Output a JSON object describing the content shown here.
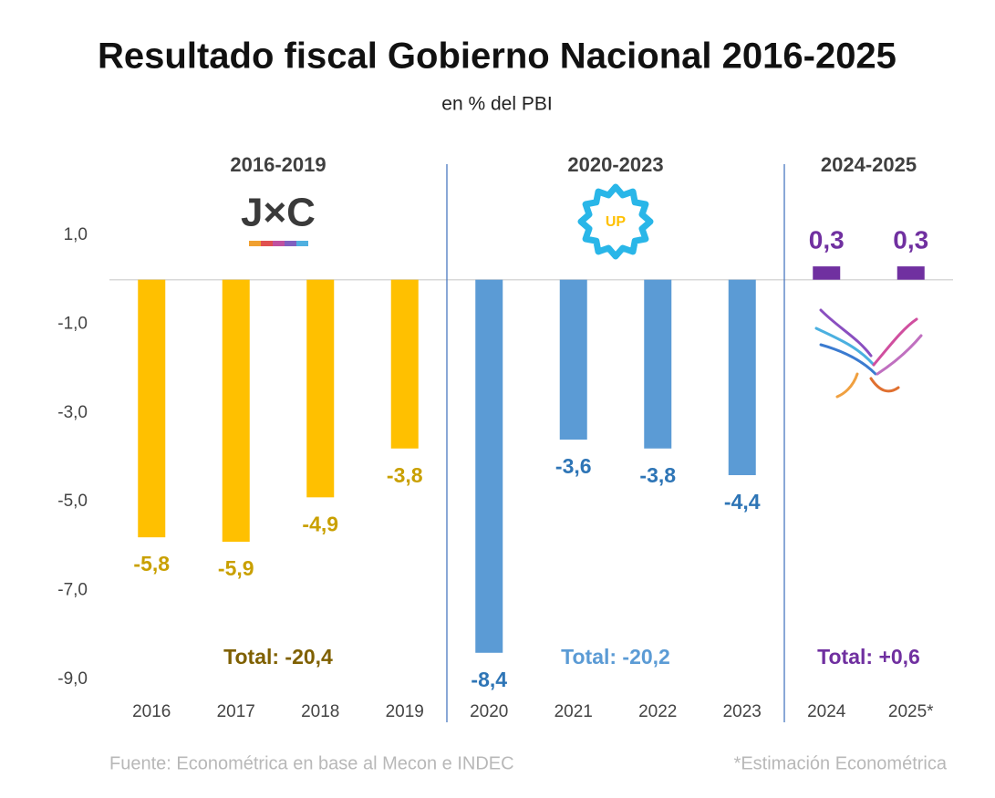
{
  "chart_data": {
    "type": "bar",
    "title": "Resultado fiscal Gobierno Nacional 2016-2025",
    "subtitle": "en % del PBI",
    "categories": [
      "2016",
      "2017",
      "2018",
      "2019",
      "2020",
      "2021",
      "2022",
      "2023",
      "2024",
      "2025*"
    ],
    "series": [
      {
        "name": "2016-2019",
        "color": "#ffc000",
        "label_color": "#c9a000",
        "total_color": "#7f6000",
        "logo": "J×C",
        "total": "Total: -20,4",
        "values": [
          -5.8,
          -5.9,
          -4.9,
          -3.8,
          null,
          null,
          null,
          null,
          null,
          null
        ],
        "value_labels": [
          "-5,8",
          "-5,9",
          "-4,9",
          "-3,8",
          null,
          null,
          null,
          null,
          null,
          null
        ]
      },
      {
        "name": "2020-2023",
        "color": "#5b9bd5",
        "label_color": "#2e75b6",
        "total_color": "#5b9bd5",
        "logo": "UP",
        "total": "Total: -20,2",
        "values": [
          null,
          null,
          null,
          null,
          -8.4,
          -3.6,
          -3.8,
          -4.4,
          null,
          null
        ],
        "value_labels": [
          null,
          null,
          null,
          null,
          "-8,4",
          "-3,6",
          "-3,8",
          "-4,4",
          null,
          null
        ]
      },
      {
        "name": "2024-2025",
        "color": "#7030a0",
        "label_color": "#7030a0",
        "total_color": "#7030a0",
        "total": "Total: +0,6",
        "values": [
          null,
          null,
          null,
          null,
          null,
          null,
          null,
          null,
          0.3,
          0.3
        ],
        "value_labels": [
          null,
          null,
          null,
          null,
          null,
          null,
          null,
          null,
          "0,3",
          "0,3"
        ]
      }
    ],
    "ylim": [
      -9,
      1
    ],
    "yticks": [
      {
        "value": 1,
        "label": "1,0"
      },
      {
        "value": -1,
        "label": "-1,0"
      },
      {
        "value": -3,
        "label": "-3,0"
      },
      {
        "value": -5,
        "label": "-5,0"
      },
      {
        "value": -7,
        "label": "-7,0"
      },
      {
        "value": -9,
        "label": "-9,0"
      }
    ],
    "grid": false,
    "source": "Fuente: Econométrica en base al Mecon e INDEC",
    "note": "*Estimación Econométrica"
  }
}
